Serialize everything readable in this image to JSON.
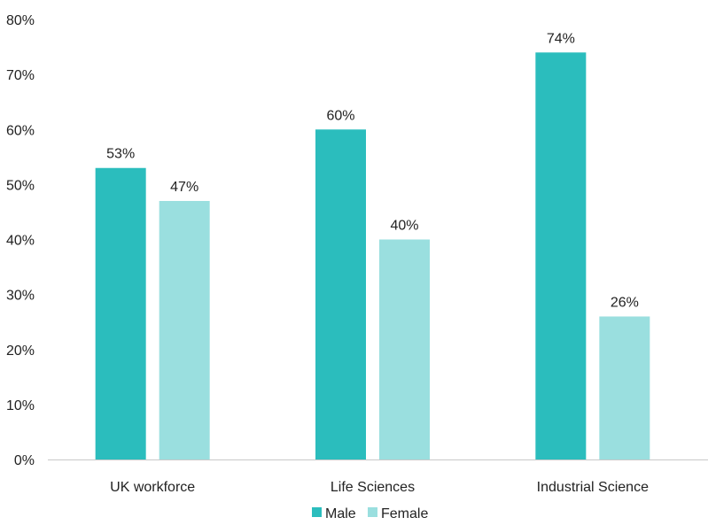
{
  "chart_data": {
    "type": "bar",
    "categories": [
      "UK workforce",
      "Life Sciences",
      "Industrial Science"
    ],
    "series": [
      {
        "name": "Male",
        "values": [
          53,
          60,
          74
        ],
        "color": "#2bbdbd"
      },
      {
        "name": "Female",
        "values": [
          47,
          40,
          26
        ],
        "color": "#9adfdf"
      }
    ],
    "value_suffix": "%",
    "ylim": [
      0,
      80
    ],
    "yticks": [
      0,
      10,
      20,
      30,
      40,
      50,
      60,
      70,
      80
    ],
    "ytick_labels": [
      "0%",
      "10%",
      "20%",
      "30%",
      "40%",
      "50%",
      "60%",
      "70%",
      "80%"
    ],
    "grid": false,
    "legend_position": "bottom"
  }
}
